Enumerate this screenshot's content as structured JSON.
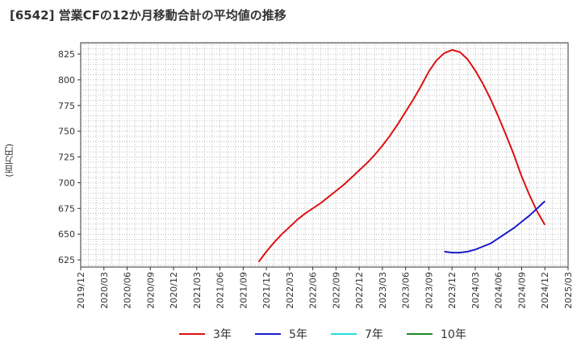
{
  "chart_data": {
    "type": "line",
    "title": "[6542]  営業CFの12か月移動合計の平均値の推移",
    "ylabel": "(百万円)",
    "ylim": [
      618,
      836
    ],
    "yticks": [
      625,
      650,
      675,
      700,
      725,
      750,
      775,
      800,
      825
    ],
    "xlim": [
      "2019/12",
      "2025/03"
    ],
    "x_ticks": [
      "2019/12",
      "2020/03",
      "2020/06",
      "2020/09",
      "2020/12",
      "2021/03",
      "2021/06",
      "2021/09",
      "2021/12",
      "2022/03",
      "2022/06",
      "2022/09",
      "2022/12",
      "2023/03",
      "2023/06",
      "2023/09",
      "2023/12",
      "2024/03",
      "2024/06",
      "2024/09",
      "2024/12",
      "2025/03"
    ],
    "grid": true,
    "legend": "bottom",
    "series": [
      {
        "name": "3年",
        "color": "#dd1111",
        "x": [
          "2021/11",
          "2021/12",
          "2022/01",
          "2022/02",
          "2022/03",
          "2022/04",
          "2022/05",
          "2022/06",
          "2022/07",
          "2022/08",
          "2022/09",
          "2022/10",
          "2022/11",
          "2022/12",
          "2023/01",
          "2023/02",
          "2023/03",
          "2023/04",
          "2023/05",
          "2023/06",
          "2023/07",
          "2023/08",
          "2023/09",
          "2023/10",
          "2023/11",
          "2023/12",
          "2024/01",
          "2024/02",
          "2024/03",
          "2024/04",
          "2024/05",
          "2024/06",
          "2024/07",
          "2024/08",
          "2024/09",
          "2024/10",
          "2024/11",
          "2024/12"
        ],
        "values": [
          623,
          633,
          642,
          650,
          657,
          664,
          670,
          675,
          680,
          686,
          692,
          698,
          705,
          712,
          719,
          727,
          736,
          746,
          757,
          769,
          781,
          794,
          808,
          819,
          826,
          829,
          827,
          820,
          809,
          796,
          781,
          764,
          746,
          727,
          706,
          688,
          672,
          659
        ]
      },
      {
        "name": "5年",
        "color": "#1a1acc",
        "x": [
          "2023/11",
          "2023/12",
          "2024/01",
          "2024/02",
          "2024/03",
          "2024/04",
          "2024/05",
          "2024/06",
          "2024/07",
          "2024/08",
          "2024/09",
          "2024/10",
          "2024/11",
          "2024/12"
        ],
        "values": [
          633,
          632,
          632,
          633,
          635,
          638,
          641,
          646,
          651,
          656,
          662,
          668,
          675,
          682
        ]
      },
      {
        "name": "7年",
        "color": "#22dddd",
        "x": [],
        "values": []
      },
      {
        "name": "10年",
        "color": "#228822",
        "x": [],
        "values": []
      }
    ]
  }
}
